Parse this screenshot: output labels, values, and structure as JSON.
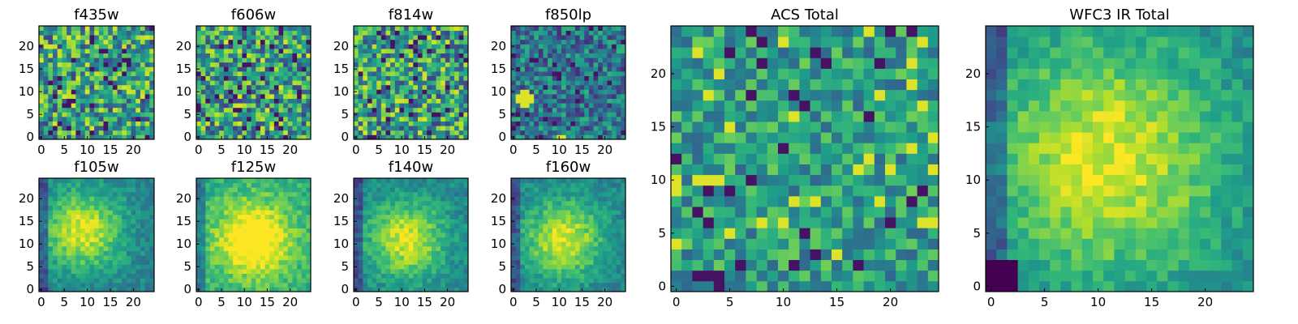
{
  "figure": {
    "description_kind": "grid of heatmap panels"
  },
  "chart_data": [
    {
      "type": "heatmap",
      "title": "f435w",
      "grid": [
        25,
        25
      ],
      "seed": 11,
      "style": "noise",
      "x_ticks": [
        "0",
        "5",
        "10",
        "15",
        "20"
      ],
      "y_ticks": [
        "0",
        "5",
        "10",
        "15",
        "20"
      ]
    },
    {
      "type": "heatmap",
      "title": "f606w",
      "grid": [
        25,
        25
      ],
      "seed": 23,
      "style": "noise",
      "x_ticks": [
        "0",
        "5",
        "10",
        "15",
        "20"
      ],
      "y_ticks": [
        "0",
        "5",
        "10",
        "15",
        "20"
      ]
    },
    {
      "type": "heatmap",
      "title": "f814w",
      "grid": [
        25,
        25
      ],
      "seed": 37,
      "style": "noise",
      "x_ticks": [
        "0",
        "5",
        "10",
        "15",
        "20"
      ],
      "y_ticks": [
        "0",
        "5",
        "10",
        "15",
        "20"
      ]
    },
    {
      "type": "heatmap",
      "title": "f850lp",
      "grid": [
        25,
        25
      ],
      "seed": 41,
      "style": "dark-noise",
      "hotspot": [
        2.5,
        8.5
      ],
      "x_ticks": [
        "0",
        "5",
        "10",
        "15",
        "20"
      ],
      "y_ticks": [
        "0",
        "5",
        "10",
        "15",
        "20"
      ]
    },
    {
      "type": "heatmap",
      "title": "f105w",
      "grid": [
        25,
        25
      ],
      "seed": 53,
      "style": "smooth",
      "peak": [
        9,
        13
      ],
      "x_ticks": [
        "0",
        "5",
        "10",
        "15",
        "20"
      ],
      "y_ticks": [
        "0",
        "5",
        "10",
        "15",
        "20"
      ]
    },
    {
      "type": "heatmap",
      "title": "f125w",
      "grid": [
        25,
        25
      ],
      "seed": 61,
      "style": "smooth-bright",
      "peak": [
        12,
        11
      ],
      "x_ticks": [
        "0",
        "5",
        "10",
        "15",
        "20"
      ],
      "y_ticks": [
        "0",
        "5",
        "10",
        "15",
        "20"
      ]
    },
    {
      "type": "heatmap",
      "title": "f140w",
      "grid": [
        25,
        25
      ],
      "seed": 71,
      "style": "smooth",
      "peak": [
        11,
        11
      ],
      "x_ticks": [
        "0",
        "5",
        "10",
        "15",
        "20"
      ],
      "y_ticks": [
        "0",
        "5",
        "10",
        "15",
        "20"
      ]
    },
    {
      "type": "heatmap",
      "title": "f160w",
      "grid": [
        25,
        25
      ],
      "seed": 83,
      "style": "smooth",
      "peak": [
        11,
        11
      ],
      "x_ticks": [
        "0",
        "5",
        "10",
        "15",
        "20"
      ],
      "y_ticks": [
        "0",
        "5",
        "10",
        "15",
        "20"
      ]
    },
    {
      "type": "heatmap",
      "title": "ACS Total",
      "grid": [
        25,
        25
      ],
      "seed": 97,
      "style": "mid-noise",
      "x_ticks": [
        "0",
        "5",
        "10",
        "15",
        "20"
      ],
      "y_ticks": [
        "0",
        "5",
        "10",
        "15",
        "20"
      ]
    },
    {
      "type": "heatmap",
      "title": "WFC3 IR Total",
      "grid": [
        25,
        25
      ],
      "seed": 101,
      "style": "smooth-large",
      "peak": [
        11,
        12
      ],
      "x_ticks": [
        "0",
        "5",
        "10",
        "15",
        "20"
      ],
      "y_ticks": [
        "0",
        "5",
        "10",
        "15",
        "20"
      ]
    }
  ],
  "colormap": [
    "#440154",
    "#482878",
    "#3e4a89",
    "#31688e",
    "#26828e",
    "#1f9e89",
    "#35b779",
    "#6ece58",
    "#b5de2b",
    "#fde725"
  ]
}
